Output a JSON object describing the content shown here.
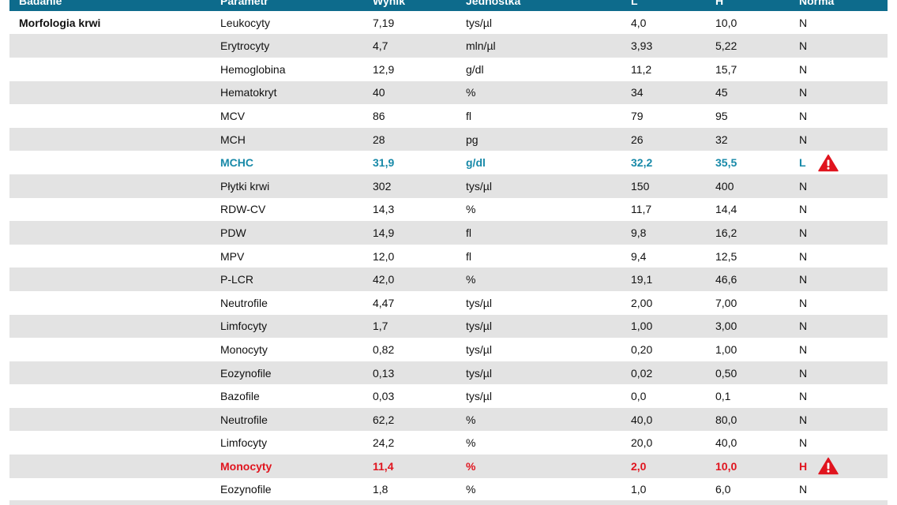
{
  "header": {
    "badanie": "Badanie",
    "parametr": "Parametr",
    "wynik": "Wynik",
    "jednostka": "Jednostka",
    "l": "L",
    "h": "H",
    "norma": "Norma"
  },
  "section": "Morfologia krwi",
  "rows": [
    {
      "parametr": "Leukocyty",
      "wynik": "7,19",
      "jednostka": "tys/µl",
      "l": "4,0",
      "h": "10,0",
      "norma": "N",
      "flag": ""
    },
    {
      "parametr": "Erytrocyty",
      "wynik": "4,7",
      "jednostka": "mln/µl",
      "l": "3,93",
      "h": "5,22",
      "norma": "N",
      "flag": ""
    },
    {
      "parametr": "Hemoglobina",
      "wynik": "12,9",
      "jednostka": "g/dl",
      "l": "11,2",
      "h": "15,7",
      "norma": "N",
      "flag": ""
    },
    {
      "parametr": "Hematokryt",
      "wynik": "40",
      "jednostka": "%",
      "l": "34",
      "h": "45",
      "norma": "N",
      "flag": ""
    },
    {
      "parametr": "MCV",
      "wynik": "86",
      "jednostka": "fl",
      "l": "79",
      "h": "95",
      "norma": "N",
      "flag": ""
    },
    {
      "parametr": "MCH",
      "wynik": "28",
      "jednostka": "pg",
      "l": "26",
      "h": "32",
      "norma": "N",
      "flag": ""
    },
    {
      "parametr": "MCHC",
      "wynik": "31,9",
      "jednostka": "g/dl",
      "l": "32,2",
      "h": "35,5",
      "norma": "L",
      "flag": "low"
    },
    {
      "parametr": "Płytki krwi",
      "wynik": "302",
      "jednostka": "tys/µl",
      "l": "150",
      "h": "400",
      "norma": "N",
      "flag": ""
    },
    {
      "parametr": "RDW-CV",
      "wynik": "14,3",
      "jednostka": "%",
      "l": "11,7",
      "h": "14,4",
      "norma": "N",
      "flag": ""
    },
    {
      "parametr": "PDW",
      "wynik": "14,9",
      "jednostka": "fl",
      "l": "9,8",
      "h": "16,2",
      "norma": "N",
      "flag": ""
    },
    {
      "parametr": "MPV",
      "wynik": "12,0",
      "jednostka": "fl",
      "l": "9,4",
      "h": "12,5",
      "norma": "N",
      "flag": ""
    },
    {
      "parametr": "P-LCR",
      "wynik": "42,0",
      "jednostka": "%",
      "l": "19,1",
      "h": "46,6",
      "norma": "N",
      "flag": ""
    },
    {
      "parametr": "Neutrofile",
      "wynik": "4,47",
      "jednostka": "tys/µl",
      "l": "2,00",
      "h": "7,00",
      "norma": "N",
      "flag": ""
    },
    {
      "parametr": "Limfocyty",
      "wynik": "1,7",
      "jednostka": "tys/µl",
      "l": "1,00",
      "h": "3,00",
      "norma": "N",
      "flag": ""
    },
    {
      "parametr": "Monocyty",
      "wynik": "0,82",
      "jednostka": "tys/µl",
      "l": "0,20",
      "h": "1,00",
      "norma": "N",
      "flag": ""
    },
    {
      "parametr": "Eozynofile",
      "wynik": "0,13",
      "jednostka": "tys/µl",
      "l": "0,02",
      "h": "0,50",
      "norma": "N",
      "flag": ""
    },
    {
      "parametr": "Bazofile",
      "wynik": "0,03",
      "jednostka": "tys/µl",
      "l": "0,0",
      "h": "0,1",
      "norma": "N",
      "flag": ""
    },
    {
      "parametr": "Neutrofile",
      "wynik": "62,2",
      "jednostka": "%",
      "l": "40,0",
      "h": "80,0",
      "norma": "N",
      "flag": ""
    },
    {
      "parametr": "Limfocyty",
      "wynik": "24,2",
      "jednostka": "%",
      "l": "20,0",
      "h": "40,0",
      "norma": "N",
      "flag": ""
    },
    {
      "parametr": "Monocyty",
      "wynik": "11,4",
      "jednostka": "%",
      "l": "2,0",
      "h": "10,0",
      "norma": "H",
      "flag": "high"
    },
    {
      "parametr": "Eozynofile",
      "wynik": "1,8",
      "jednostka": "%",
      "l": "1,0",
      "h": "6,0",
      "norma": "N",
      "flag": ""
    }
  ],
  "colors": {
    "header_bg": "#0d6b8c",
    "stripe_bg": "#e3e3e3",
    "low_flag": "#1789a8",
    "high_flag": "#e0141e",
    "warning_icon": "#e0141e"
  },
  "icons": {
    "abnormal": "warning-triangle-icon"
  }
}
